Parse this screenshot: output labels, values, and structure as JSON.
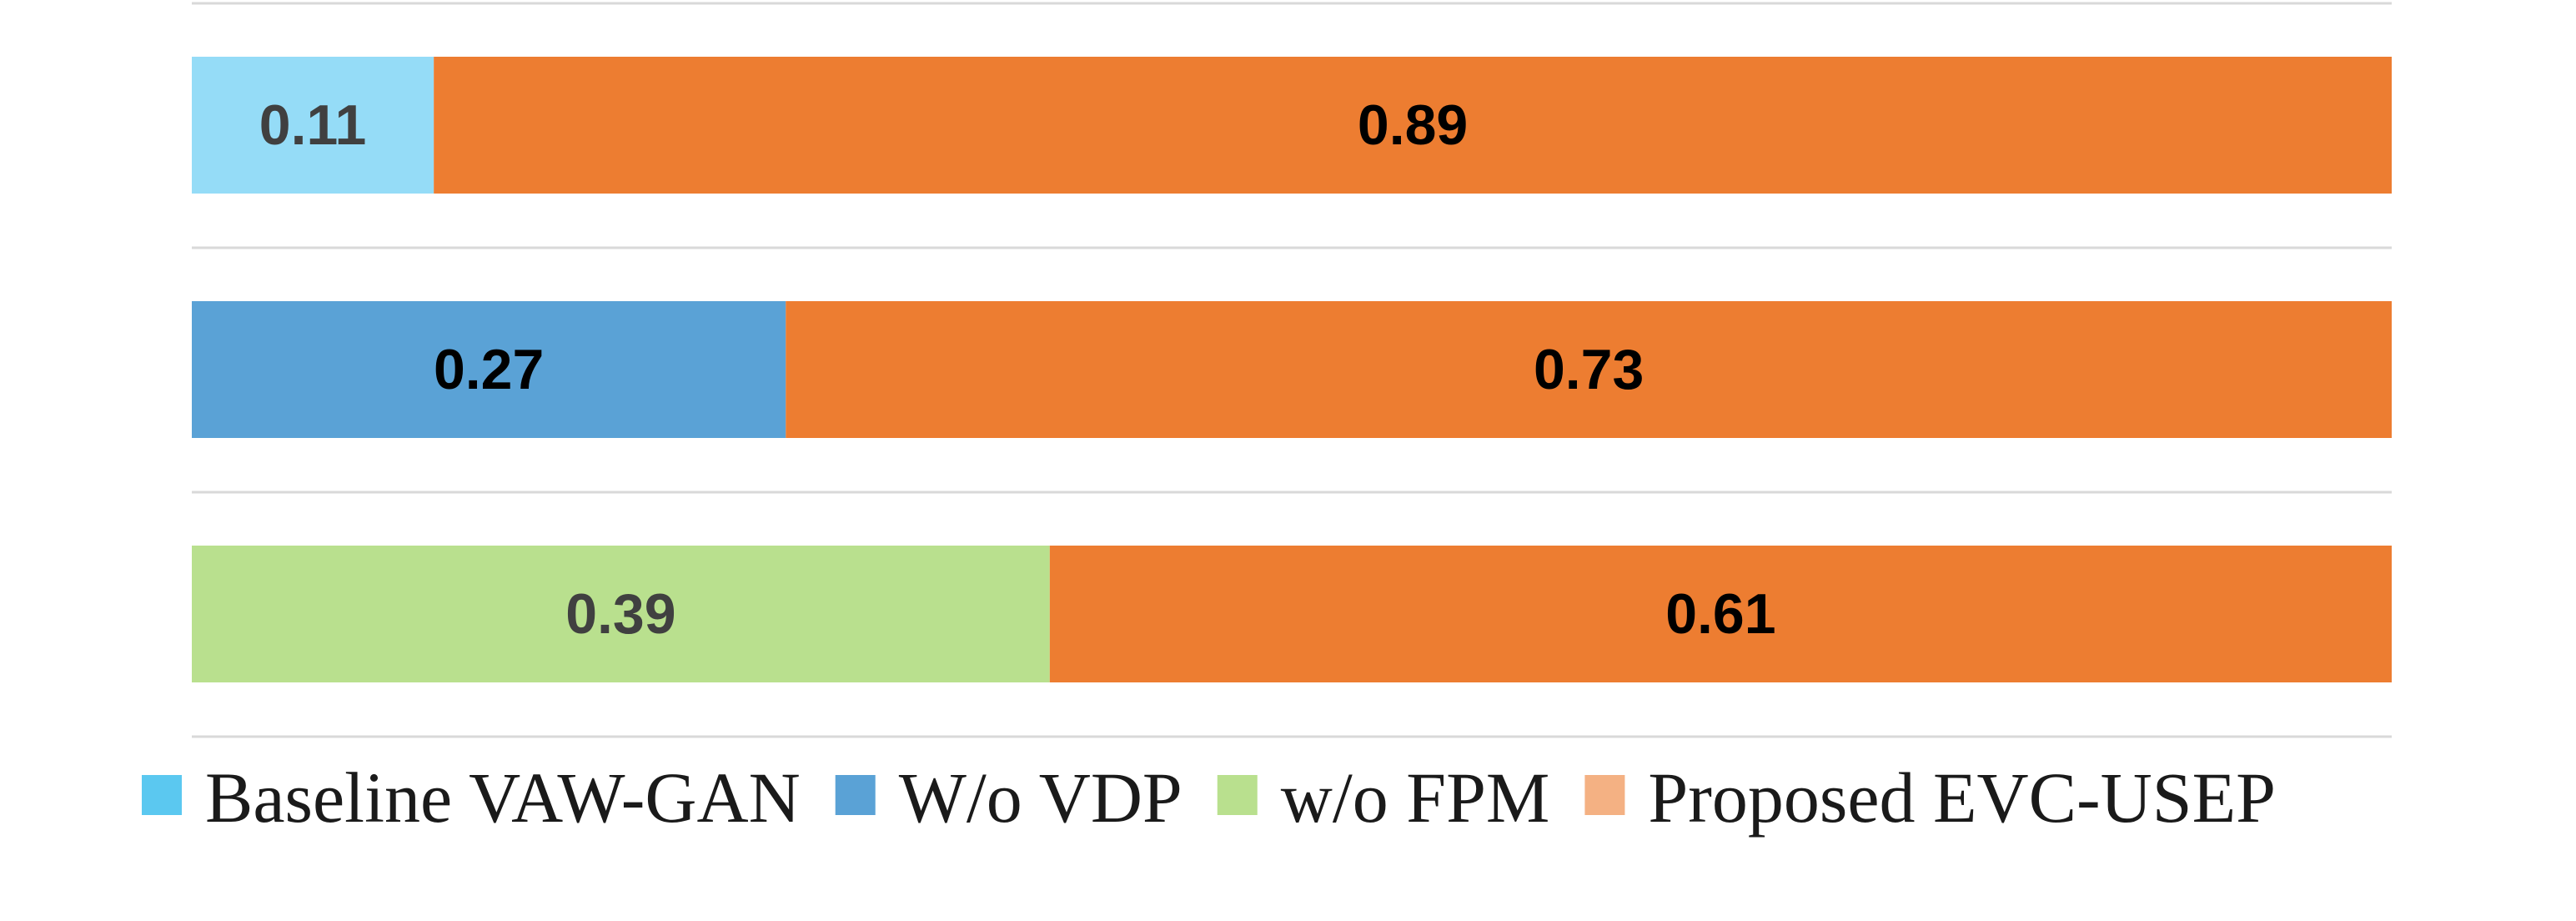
{
  "chart_data": {
    "type": "bar",
    "orientation": "horizontal",
    "stacked": true,
    "normalized": true,
    "grid": true,
    "legend_position": "bottom",
    "rows": [
      {
        "segments": [
          {
            "series": "Baseline VAW-GAN",
            "value": 0.11,
            "label": "0.11",
            "color": "#95dcf7",
            "label_color": "#404040"
          },
          {
            "series": "Proposed  EVC-USEP",
            "value": 0.89,
            "label": "0.89",
            "color": "#ed7d31",
            "label_color": "#000000"
          }
        ]
      },
      {
        "segments": [
          {
            "series": "W/o VDP",
            "value": 0.27,
            "label": "0.27",
            "color": "#5aa2d6",
            "label_color": "#000000"
          },
          {
            "series": "Proposed  EVC-USEP",
            "value": 0.73,
            "label": "0.73",
            "color": "#ed7d31",
            "label_color": "#000000"
          }
        ]
      },
      {
        "segments": [
          {
            "series": "w/o FPM",
            "value": 0.39,
            "label": "0.39",
            "color": "#b9e08e",
            "label_color": "#404040"
          },
          {
            "series": "Proposed  EVC-USEP",
            "value": 0.61,
            "label": "0.61",
            "color": "#ed7d31",
            "label_color": "#000000"
          }
        ]
      }
    ],
    "legend": [
      {
        "name": "Baseline VAW-GAN",
        "color": "#5bc8f0"
      },
      {
        "name": "W/o VDP",
        "color": "#5aa2d6"
      },
      {
        "name": "w/o FPM",
        "color": "#b9e08e"
      },
      {
        "name": "Proposed  EVC-USEP",
        "color": "#f4b183"
      }
    ]
  }
}
